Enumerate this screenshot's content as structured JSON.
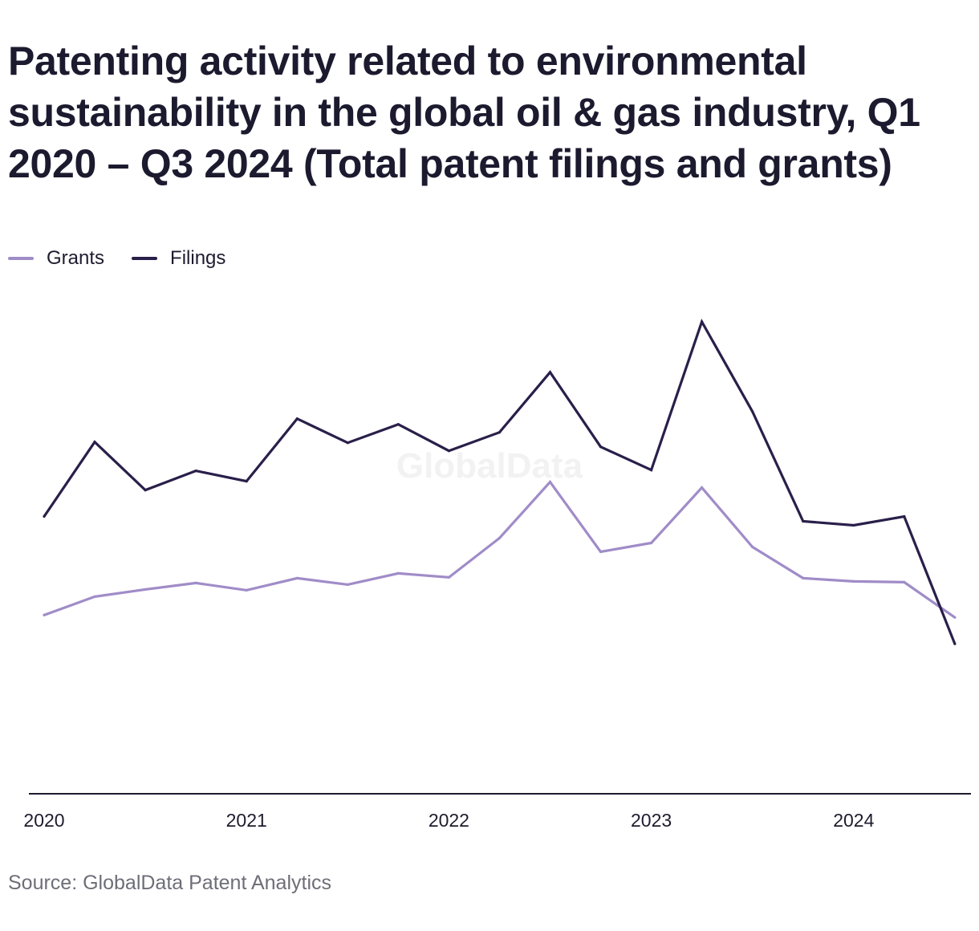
{
  "title": "Patenting activity related to environmental sustainability in the global oil & gas industry, Q1 2020 – Q3 2024 (Total patent filings and grants)",
  "source": "Source: GlobalData Patent Analytics",
  "watermark": "GlobalData",
  "colors": {
    "grants": "#a08cc8",
    "filings": "#2a1f4a",
    "axis": "#1c1a2e",
    "watermark": "#f2f2f2"
  },
  "chart_data": {
    "type": "line",
    "title": "Patenting activity related to environmental sustainability in the global oil & gas industry, Q1 2020 – Q3 2024 (Total patent filings and grants)",
    "xlabel": "",
    "ylabel": "",
    "x": [
      "Q1 2020",
      "Q2 2020",
      "Q3 2020",
      "Q4 2020",
      "Q1 2021",
      "Q2 2021",
      "Q3 2021",
      "Q4 2021",
      "Q1 2022",
      "Q2 2022",
      "Q3 2022",
      "Q4 2022",
      "Q1 2023",
      "Q2 2023",
      "Q3 2023",
      "Q4 2023",
      "Q1 2024",
      "Q2 2024",
      "Q3 2024"
    ],
    "x_tick_labels": [
      "2020",
      "2021",
      "2022",
      "2023",
      "2024"
    ],
    "ylim": [
      0,
      630
    ],
    "y_axis_visible": false,
    "grid": false,
    "legend_position": "top-left",
    "series": [
      {
        "name": "Grants",
        "color": "#a08cc8",
        "values": [
          223,
          246,
          255,
          263,
          254,
          269,
          261,
          275,
          270,
          319,
          389,
          302,
          313,
          382,
          308,
          269,
          265,
          264,
          220
        ]
      },
      {
        "name": "Filings",
        "color": "#2a1f4a",
        "values": [
          346,
          439,
          379,
          403,
          390,
          468,
          438,
          461,
          428,
          451,
          526,
          433,
          404,
          589,
          477,
          340,
          335,
          346,
          187
        ]
      }
    ]
  }
}
